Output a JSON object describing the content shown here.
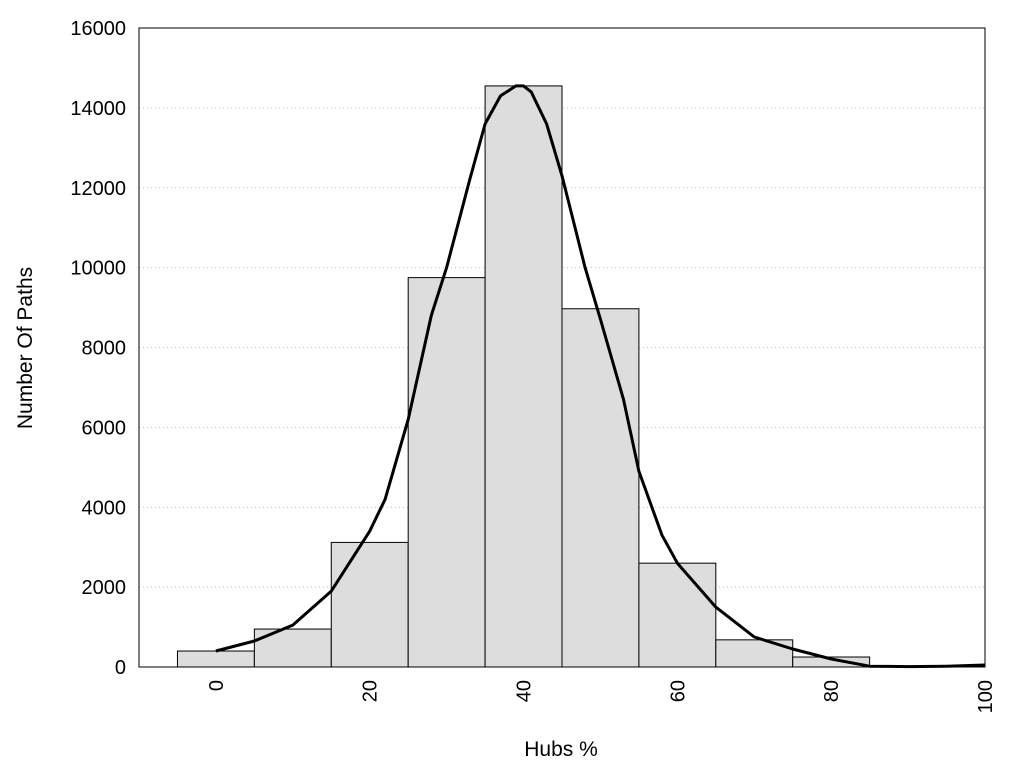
{
  "chart_data": {
    "type": "bar",
    "title": "",
    "xlabel": "Hubs %",
    "ylabel": "Number Of Paths",
    "xlim": [
      -10,
      100
    ],
    "ylim": [
      0,
      16000
    ],
    "x_ticks": [
      "0",
      "20",
      "40",
      "60",
      "80",
      "100"
    ],
    "y_ticks": [
      "0",
      "2000",
      "4000",
      "6000",
      "8000",
      "10000",
      "12000",
      "14000",
      "16000"
    ],
    "grid": "horizontal dotted",
    "bin_width": 10,
    "bins": [
      {
        "center": 0,
        "value": 400
      },
      {
        "center": 10,
        "value": 950
      },
      {
        "center": 20,
        "value": 3120
      },
      {
        "center": 30,
        "value": 9750
      },
      {
        "center": 40,
        "value": 14550
      },
      {
        "center": 50,
        "value": 8970
      },
      {
        "center": 60,
        "value": 2600
      },
      {
        "center": 70,
        "value": 680
      },
      {
        "center": 80,
        "value": 250
      },
      {
        "center": 90,
        "value": 20
      }
    ],
    "density_curve": {
      "x": [
        0,
        5,
        10,
        15,
        20,
        22,
        25,
        28,
        30,
        33,
        35,
        37,
        39,
        40,
        41,
        43,
        45,
        48,
        50,
        53,
        55,
        58,
        60,
        65,
        70,
        75,
        80,
        85,
        90,
        95,
        100
      ],
      "y": [
        400,
        650,
        1050,
        1900,
        3400,
        4200,
        6200,
        8800,
        10000,
        12200,
        13600,
        14300,
        14550,
        14550,
        14400,
        13600,
        12300,
        10000,
        8700,
        6700,
        4900,
        3300,
        2600,
        1500,
        750,
        450,
        200,
        20,
        10,
        20,
        50
      ],
      "color": "#000000"
    },
    "bar_fill": "#dddddd",
    "bar_stroke": "#000000"
  }
}
